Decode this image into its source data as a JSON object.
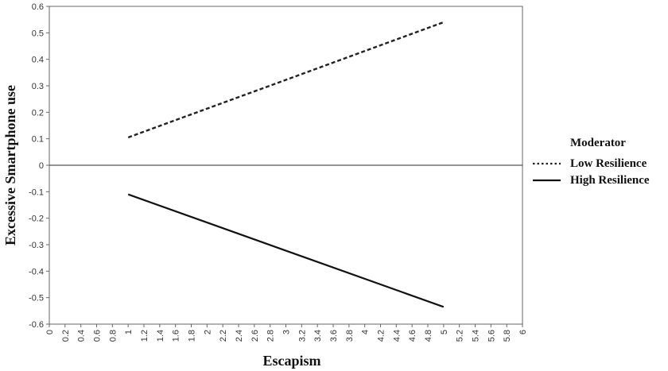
{
  "chart_data": {
    "type": "line",
    "title": "",
    "xlabel": "Escapism",
    "ylabel": "Excessive Smartphone use",
    "xlim": [
      0,
      6
    ],
    "ylim": [
      -0.6,
      0.6
    ],
    "x_ticks": [
      "0",
      "0.2",
      "0.4",
      "0.6",
      "0.8",
      "1",
      "1.2",
      "1.4",
      "1.6",
      "1.8",
      "2",
      "2.2",
      "2.4",
      "2.6",
      "2.8",
      "3",
      "3.2",
      "3.4",
      "3.6",
      "3.8",
      "4",
      "4.2",
      "4.4",
      "4.6",
      "4.8",
      "5",
      "5.2",
      "5.4",
      "5.6",
      "5.8",
      "6"
    ],
    "y_ticks": [
      "0.6",
      "0.5",
      "0.4",
      "0.3",
      "0.2",
      "0.1",
      "0",
      "-0.1",
      "-0.2",
      "-0.3",
      "-0.4",
      "-0.5",
      "-0.6"
    ],
    "grid": false,
    "legend": {
      "title": "Moderator",
      "position": "right"
    },
    "series": [
      {
        "name": "Low Resilience",
        "style": "dotted",
        "color": "#222222",
        "x": [
          1,
          5
        ],
        "y": [
          0.105,
          0.54
        ]
      },
      {
        "name": "High Resilience",
        "style": "solid",
        "color": "#111111",
        "x": [
          1,
          5
        ],
        "y": [
          -0.11,
          -0.535
        ]
      }
    ]
  }
}
